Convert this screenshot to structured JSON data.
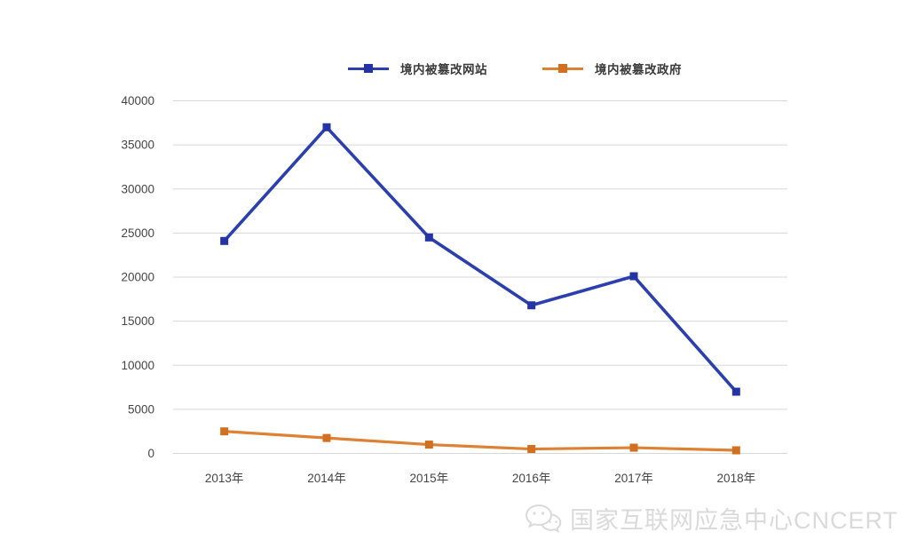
{
  "page": {
    "background": "#ffffff"
  },
  "legend": {
    "position": "top-center"
  },
  "chart_data": {
    "type": "line",
    "categories": [
      "2013年",
      "2014年",
      "2015年",
      "2016年",
      "2017年",
      "2018年"
    ],
    "series": [
      {
        "name": "境内被篡改网站",
        "color": "#2b3fae",
        "marker_color": "#2434a4",
        "values": [
          24100,
          37000,
          24500,
          16800,
          20100,
          7000
        ]
      },
      {
        "name": "境内被篡改政府",
        "color": "#dd8135",
        "marker_color": "#d2701f",
        "values": [
          2500,
          1750,
          1000,
          500,
          650,
          350
        ]
      }
    ],
    "title": "",
    "xlabel": "",
    "ylabel": "",
    "ylim": [
      0,
      40000
    ],
    "ytick_step": 5000,
    "yticks": [
      0,
      5000,
      10000,
      15000,
      20000,
      25000,
      30000,
      35000,
      40000
    ],
    "grid": "horizontal",
    "gridline_color": "#d8d8d8",
    "tick_label_color": "#454545",
    "legend_position": "top",
    "marker": "square"
  },
  "watermark": {
    "icon": "wechat-logo-icon",
    "text": "国家互联网应急中心CNCERT",
    "color": "#dadada"
  }
}
